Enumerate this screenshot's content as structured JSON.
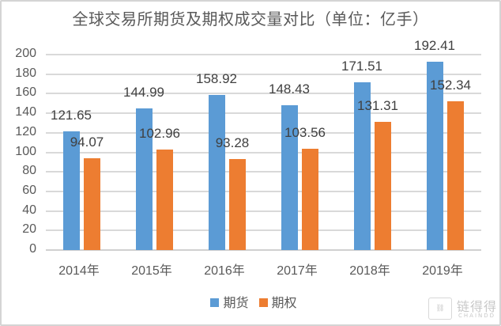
{
  "title": "全球交易所期货及期权成交量对比（单位：亿手）",
  "legend": [
    {
      "label": "期货",
      "color": "#5b9bd5"
    },
    {
      "label": "期权",
      "color": "#ed7d31"
    }
  ],
  "yaxis": {
    "ticks": [
      "200",
      "180",
      "160",
      "140",
      "120",
      "100",
      "80",
      "60",
      "40",
      "20",
      "0"
    ]
  },
  "xaxis": {
    "ticks": [
      "2014年",
      "2015年",
      "2016年",
      "2017年",
      "2018年",
      "2019年"
    ]
  },
  "labels": {
    "futures": [
      "121.65",
      "144.99",
      "158.92",
      "148.43",
      "171.51",
      "192.41"
    ],
    "options": [
      "94.07",
      "102.96",
      "93.28",
      "103.56",
      "131.31",
      "152.34"
    ]
  },
  "watermark": {
    "icon": "chain-link-icon",
    "text": "链得得",
    "subtext": "CHAINDD"
  },
  "chart_data": {
    "type": "bar",
    "title": "全球交易所期货及期权成交量对比（单位：亿手）",
    "categories": [
      "2014年",
      "2015年",
      "2016年",
      "2017年",
      "2018年",
      "2019年"
    ],
    "series": [
      {
        "name": "期货",
        "color": "#5b9bd5",
        "values": [
          121.65,
          144.99,
          158.92,
          148.43,
          171.51,
          192.41
        ]
      },
      {
        "name": "期权",
        "color": "#ed7d31",
        "values": [
          94.07,
          102.96,
          93.28,
          103.56,
          131.31,
          152.34
        ]
      }
    ],
    "xlabel": "",
    "ylabel": "",
    "ylim": [
      0,
      200
    ],
    "yticks": [
      0,
      20,
      40,
      60,
      80,
      100,
      120,
      140,
      160,
      180,
      200
    ],
    "grid": true,
    "legend_position": "bottom",
    "data_labels": true
  }
}
